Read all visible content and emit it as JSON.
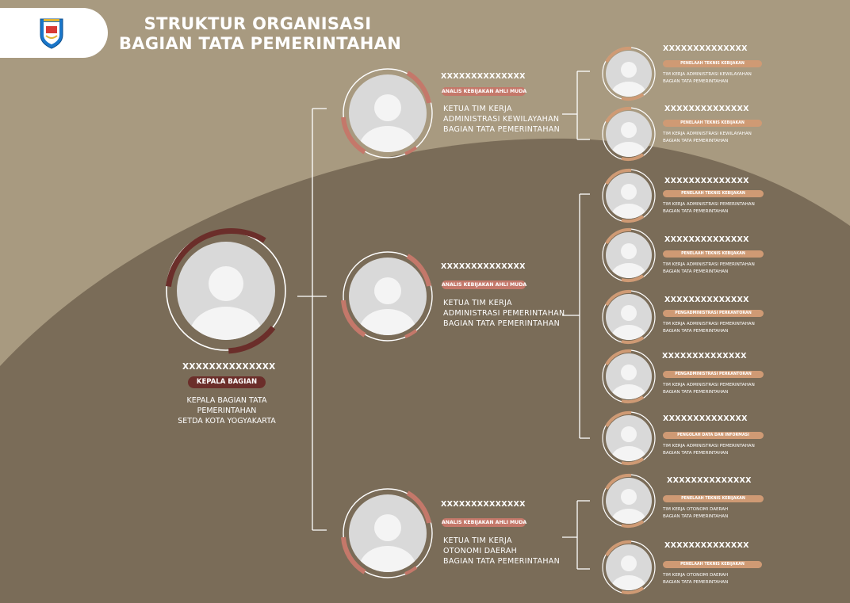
{
  "title": {
    "line1": "STRUKTUR ORGANISASI",
    "line2": "BAGIAN TATA PEMERINTAHAN"
  },
  "logo": {
    "icon": "city-emblem-icon"
  },
  "root": {
    "name": "XXXXXXXXXXXXXX",
    "badge": "KEPALA BAGIAN",
    "desc": [
      "KEPALA BAGIAN TATA",
      "PEMERINTAHAN",
      "SETDA KOTA YOGYAKARTA"
    ]
  },
  "groups": [
    {
      "name": "XXXXXXXXXXXXXX",
      "badge": "ANALIS KEBIJAKAN AHLI MUDA",
      "desc": [
        "KETUA TIM KERJA",
        "ADMINISTRASI KEWILAYAHAN",
        "BAGIAN TATA PEMERINTAHAN"
      ],
      "members": [
        {
          "name": "XXXXXXXXXXXXXX",
          "badge": "PENELAAH TEKNIS KEBIJAKAN",
          "desc": [
            "TIM KERJA ADMINISTRASI KEWILAYAHAN",
            "BAGIAN TATA PEMERINTAHAN"
          ]
        },
        {
          "name": "XXXXXXXXXXXXXX",
          "badge": "PENELAAH TEKNIS KEBIJAKAN",
          "desc": [
            "TIM KERJA ADMINISTRASI KEWILAYAHAN",
            "BAGIAN TATA PEMERINTAHAN"
          ]
        }
      ]
    },
    {
      "name": "XXXXXXXXXXXXXX",
      "badge": "ANALIS KEBIJAKAN AHLI MUDA",
      "desc": [
        "KETUA TIM KERJA",
        "ADMINISTRASI PEMERINTAHAN",
        "BAGIAN TATA PEMERINTAHAN"
      ],
      "members": [
        {
          "name": "XXXXXXXXXXXXXX",
          "badge": "PENELAAH TEKNIS KEBIJAKAN",
          "desc": [
            "TIM KERJA ADMINISTRASI PEMERINTAHAN",
            "BAGIAN TATA PEMERINTAHAN"
          ]
        },
        {
          "name": "XXXXXXXXXXXXXX",
          "badge": "PENELAAH TEKNIS KEBIJAKAN",
          "desc": [
            "TIM KERJA ADMINISTRASI PEMERINTAHAN",
            "BAGIAN TATA PEMERINTAHAN"
          ]
        },
        {
          "name": "XXXXXXXXXXXXXX",
          "badge": "PENGADMINISTRASI PERKANTORAN",
          "desc": [
            "TIM KERJA ADMINISTRASI PEMERINTAHAN",
            "BAGIAN TATA PEMERINTAHAN"
          ]
        },
        {
          "name": "XXXXXXXXXXXXXX",
          "badge": "PENGADMINISTRASI PERKANTORAN",
          "desc": [
            "TIM KERJA ADMINISTRASI PEMERINTAHAN",
            "BAGIAN TATA PEMERINTAHAN"
          ]
        },
        {
          "name": "XXXXXXXXXXXXXX",
          "badge": "PENGOLAH DATA DAN INFORMASI",
          "desc": [
            "TIM KERJA ADMINISTRASI PEMERINTAHAN",
            "BAGIAN TATA PEMERINTAHAN"
          ]
        }
      ]
    },
    {
      "name": "XXXXXXXXXXXXXX",
      "badge": "ANALIS KEBIJAKAN AHLI MUDA",
      "desc": [
        "KETUA TIM KERJA",
        "OTONOMI DAERAH",
        "BAGIAN TATA PEMERINTAHAN"
      ],
      "members": [
        {
          "name": "XXXXXXXXXXXXXX",
          "badge": "PENELAAH TEKNIS KEBIJAKAN",
          "desc": [
            "TIM KERJA OTONOMI DAERAH",
            "BAGIAN TATA PEMERINTAHAN"
          ]
        },
        {
          "name": "XXXXXXXXXXXXXX",
          "badge": "PENELAAH TEKNIS KEBIJAKAN",
          "desc": [
            "TIM KERJA OTONOMI DAERAH",
            "BAGIAN TATA PEMERINTAHAN"
          ]
        }
      ]
    }
  ],
  "colors": {
    "background_light": "#a89a80",
    "background_dark": "#7a6c58",
    "root_accent": "#6b2e2a",
    "group_accent": "#c4786a",
    "member_accent": "#cf9a74",
    "avatar_fill": "#d9d9d9",
    "avatar_silhouette": "#f4f4f4"
  }
}
